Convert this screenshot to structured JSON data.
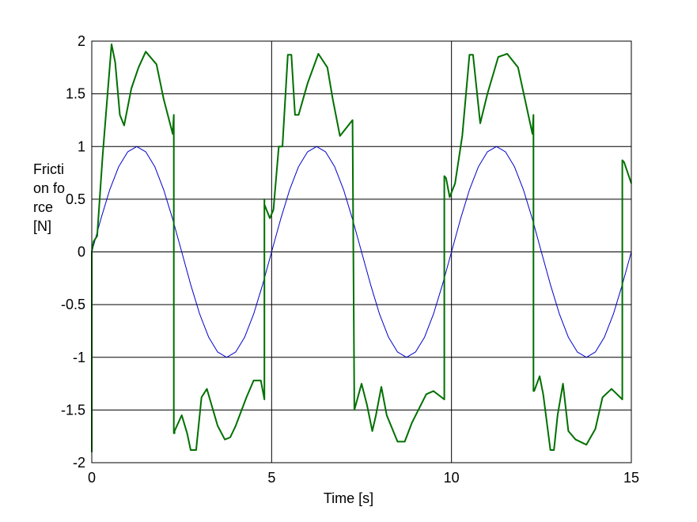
{
  "chart_data": {
    "type": "line",
    "title": "",
    "xlabel": "Time [s]",
    "ylabel": "Friction force [N]",
    "xlim": [
      0,
      15
    ],
    "ylim": [
      -2,
      2
    ],
    "xticks": [
      0,
      5,
      10,
      15
    ],
    "xtick_labels": [
      "0",
      "5",
      "10",
      "15"
    ],
    "yticks": [
      -2,
      -1.5,
      -1,
      -0.5,
      0,
      0.5,
      1,
      1.5,
      2
    ],
    "ytick_labels": [
      "-2",
      "-1.5",
      "-1",
      "-0.5",
      "0",
      "0.5",
      "1",
      "1.5",
      "2"
    ],
    "grid": true,
    "legend": "none",
    "series": [
      {
        "color": "#0000cc",
        "style": "thin",
        "x": [
          0,
          0.25,
          0.5,
          0.75,
          1.0,
          1.25,
          1.5,
          1.75,
          2.0,
          2.25,
          2.5,
          2.75,
          3.0,
          3.25,
          3.5,
          3.75,
          4.0,
          4.25,
          4.5,
          4.75,
          5.0,
          5.25,
          5.5,
          5.75,
          6.0,
          6.25,
          6.5,
          6.75,
          7.0,
          7.25,
          7.5,
          7.75,
          8.0,
          8.25,
          8.5,
          8.75,
          9.0,
          9.25,
          9.5,
          9.75,
          10.0,
          10.25,
          10.5,
          10.75,
          11.0,
          11.25,
          11.5,
          11.75,
          12.0,
          12.25,
          12.5,
          12.75,
          13.0,
          13.25,
          13.5,
          13.75,
          14.0,
          14.25,
          14.5,
          14.75,
          15.0
        ],
        "y": [
          0,
          0.31,
          0.59,
          0.81,
          0.95,
          1.0,
          0.95,
          0.81,
          0.59,
          0.31,
          0,
          -0.31,
          -0.59,
          -0.81,
          -0.95,
          -1.0,
          -0.95,
          -0.81,
          -0.59,
          -0.31,
          0,
          0.31,
          0.59,
          0.81,
          0.95,
          1.0,
          0.95,
          0.81,
          0.59,
          0.31,
          0,
          -0.31,
          -0.59,
          -0.81,
          -0.95,
          -1.0,
          -0.95,
          -0.81,
          -0.59,
          -0.31,
          0,
          0.31,
          0.59,
          0.81,
          0.95,
          1.0,
          0.95,
          0.81,
          0.59,
          0.31,
          0,
          -0.31,
          -0.59,
          -0.81,
          -0.95,
          -1.0,
          -0.95,
          -0.81,
          -0.59,
          -0.31,
          0
        ]
      },
      {
        "color": "#007000",
        "style": "thick",
        "x": [
          0.0,
          0.0,
          0.05,
          0.15,
          0.3,
          0.45,
          0.55,
          0.65,
          0.78,
          0.9,
          1.1,
          1.3,
          1.5,
          1.8,
          2.0,
          2.25,
          2.28,
          2.28,
          2.3,
          2.3,
          2.5,
          2.65,
          2.75,
          2.9,
          3.05,
          3.2,
          3.5,
          3.7,
          3.85,
          4.0,
          4.3,
          4.5,
          4.7,
          4.8,
          4.8,
          4.8,
          4.95,
          5.05,
          5.2,
          5.3,
          5.45,
          5.55,
          5.65,
          5.75,
          6.0,
          6.3,
          6.55,
          6.7,
          6.9,
          7.25,
          7.3,
          7.3,
          7.5,
          7.65,
          7.8,
          7.9,
          8.05,
          8.2,
          8.5,
          8.7,
          8.9,
          9.3,
          9.5,
          9.8,
          9.8,
          9.85,
          9.95,
          10.1,
          10.3,
          10.5,
          10.6,
          10.8,
          11.0,
          11.3,
          11.55,
          11.85,
          12.25,
          12.28,
          12.28,
          12.3,
          12.45,
          12.55,
          12.75,
          12.85,
          12.95,
          13.1,
          13.25,
          13.45,
          13.75,
          14.0,
          14.2,
          14.45,
          14.75,
          14.75,
          14.8,
          15.0
        ],
        "y": [
          -1.9,
          0.0,
          0.1,
          0.15,
          0.9,
          1.55,
          1.97,
          1.8,
          1.3,
          1.2,
          1.55,
          1.75,
          1.9,
          1.78,
          1.45,
          1.12,
          1.3,
          -1.72,
          -1.72,
          -1.7,
          -1.55,
          -1.72,
          -1.88,
          -1.88,
          -1.38,
          -1.3,
          -1.65,
          -1.78,
          -1.76,
          -1.65,
          -1.38,
          -1.22,
          -1.22,
          -1.4,
          0.5,
          0.45,
          0.32,
          0.4,
          1.0,
          1.0,
          1.87,
          1.87,
          1.3,
          1.3,
          1.6,
          1.88,
          1.75,
          1.45,
          1.1,
          1.25,
          -1.5,
          -1.5,
          -1.25,
          -1.45,
          -1.7,
          -1.55,
          -1.28,
          -1.55,
          -1.8,
          -1.8,
          -1.62,
          -1.35,
          -1.32,
          -1.4,
          0.72,
          0.7,
          0.52,
          0.65,
          1.1,
          1.87,
          1.87,
          1.22,
          1.5,
          1.85,
          1.88,
          1.75,
          1.12,
          1.3,
          -1.32,
          -1.32,
          -1.18,
          -1.35,
          -1.88,
          -1.88,
          -1.55,
          -1.25,
          -1.7,
          -1.78,
          -1.83,
          -1.68,
          -1.38,
          -1.3,
          -1.4,
          0.87,
          0.85,
          0.65
        ]
      }
    ]
  }
}
